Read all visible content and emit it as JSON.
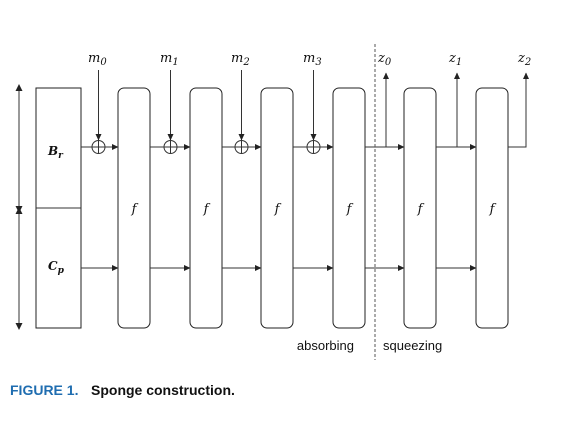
{
  "state": {
    "rate_label": "B",
    "rate_sub": "r",
    "capacity_label": "C",
    "capacity_sub": "p"
  },
  "function_label": "f",
  "inputs": [
    {
      "base": "m",
      "sub": "0"
    },
    {
      "base": "m",
      "sub": "1"
    },
    {
      "base": "m",
      "sub": "2"
    },
    {
      "base": "m",
      "sub": "3"
    }
  ],
  "outputs": [
    {
      "base": "z",
      "sub": "0"
    },
    {
      "base": "z",
      "sub": "1"
    },
    {
      "base": "z",
      "sub": "2"
    }
  ],
  "phases": {
    "absorbing": "absorbing",
    "squeezing": "squeezing"
  },
  "caption": {
    "figure_label": "FIGURE 1.",
    "title": "Sponge construction."
  }
}
